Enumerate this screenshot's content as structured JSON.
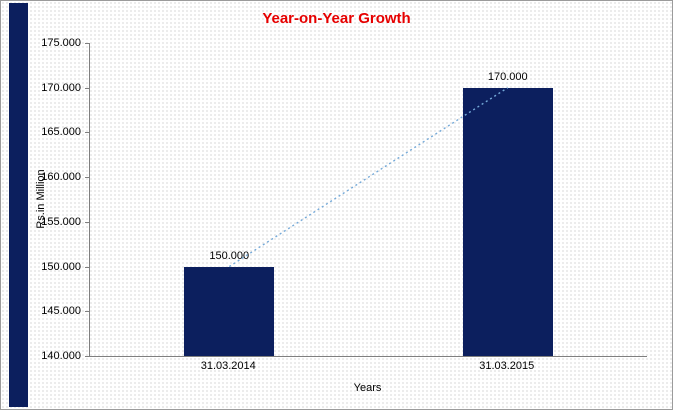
{
  "title": "Year-on-Year Growth",
  "colors": {
    "title": "#e60000",
    "bar": "#0c1f5e",
    "trend": "#74a9d8",
    "axis": "#7f7f7f",
    "strip": "#0c1f5e"
  },
  "chart_data": {
    "type": "bar",
    "title": "Year-on-Year Growth",
    "categories": [
      "31.03.2014",
      "31.03.2015"
    ],
    "values": [
      150000,
      170000
    ],
    "data_labels": [
      "150.000",
      "170.000"
    ],
    "xlabel": "Years",
    "ylabel": "Rs.in Million",
    "ylim": [
      140000,
      175000
    ],
    "ytick_step": 5000,
    "ytick_labels": [
      "140.000",
      "145.000",
      "150.000",
      "155.000",
      "160.000",
      "165.000",
      "170.000",
      "175.000"
    ],
    "grid": false,
    "legend": "none",
    "trendline": {
      "style": "dotted",
      "from_category": "31.03.2014",
      "to_category": "31.03.2015"
    }
  }
}
